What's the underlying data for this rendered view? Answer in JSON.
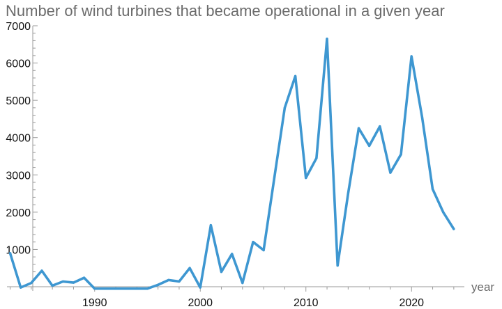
{
  "chart_data": {
    "type": "line",
    "title": "Number of wind turbines that became operational in a given year",
    "xlabel": "year",
    "ylabel": "",
    "xlim": [
      1981.7,
      2025
    ],
    "ylim": [
      0,
      7000
    ],
    "x_ticks": [
      1990,
      2000,
      2010,
      2020
    ],
    "y_ticks": [
      1000,
      2000,
      3000,
      4000,
      5000,
      6000,
      7000
    ],
    "grid": false,
    "colors": {
      "series": "#3e97d1",
      "axis": "#999999"
    },
    "series": [
      {
        "x": [
          1982,
          1983,
          1984,
          1985,
          1986,
          1987,
          1988,
          1989,
          1990,
          1991,
          1992,
          1993,
          1994,
          1995,
          1996,
          1997,
          1998,
          1999,
          2000,
          2001,
          2002,
          2003,
          2004,
          2005,
          2006,
          2007,
          2008,
          2009,
          2010,
          2011,
          2012,
          2013,
          2014,
          2015,
          2016,
          2017,
          2018,
          2019,
          2020,
          2021,
          2022,
          2023,
          2024
        ],
        "values": [
          900,
          -20,
          100,
          430,
          30,
          140,
          110,
          240,
          -50,
          -50,
          -50,
          -50,
          -50,
          -50,
          50,
          180,
          140,
          500,
          -20,
          1650,
          400,
          880,
          100,
          1200,
          980,
          2900,
          4800,
          5650,
          2920,
          3450,
          6650,
          570,
          2500,
          4250,
          3780,
          4300,
          3060,
          3550,
          6180,
          4550,
          2620,
          2000,
          1550
        ]
      }
    ]
  }
}
